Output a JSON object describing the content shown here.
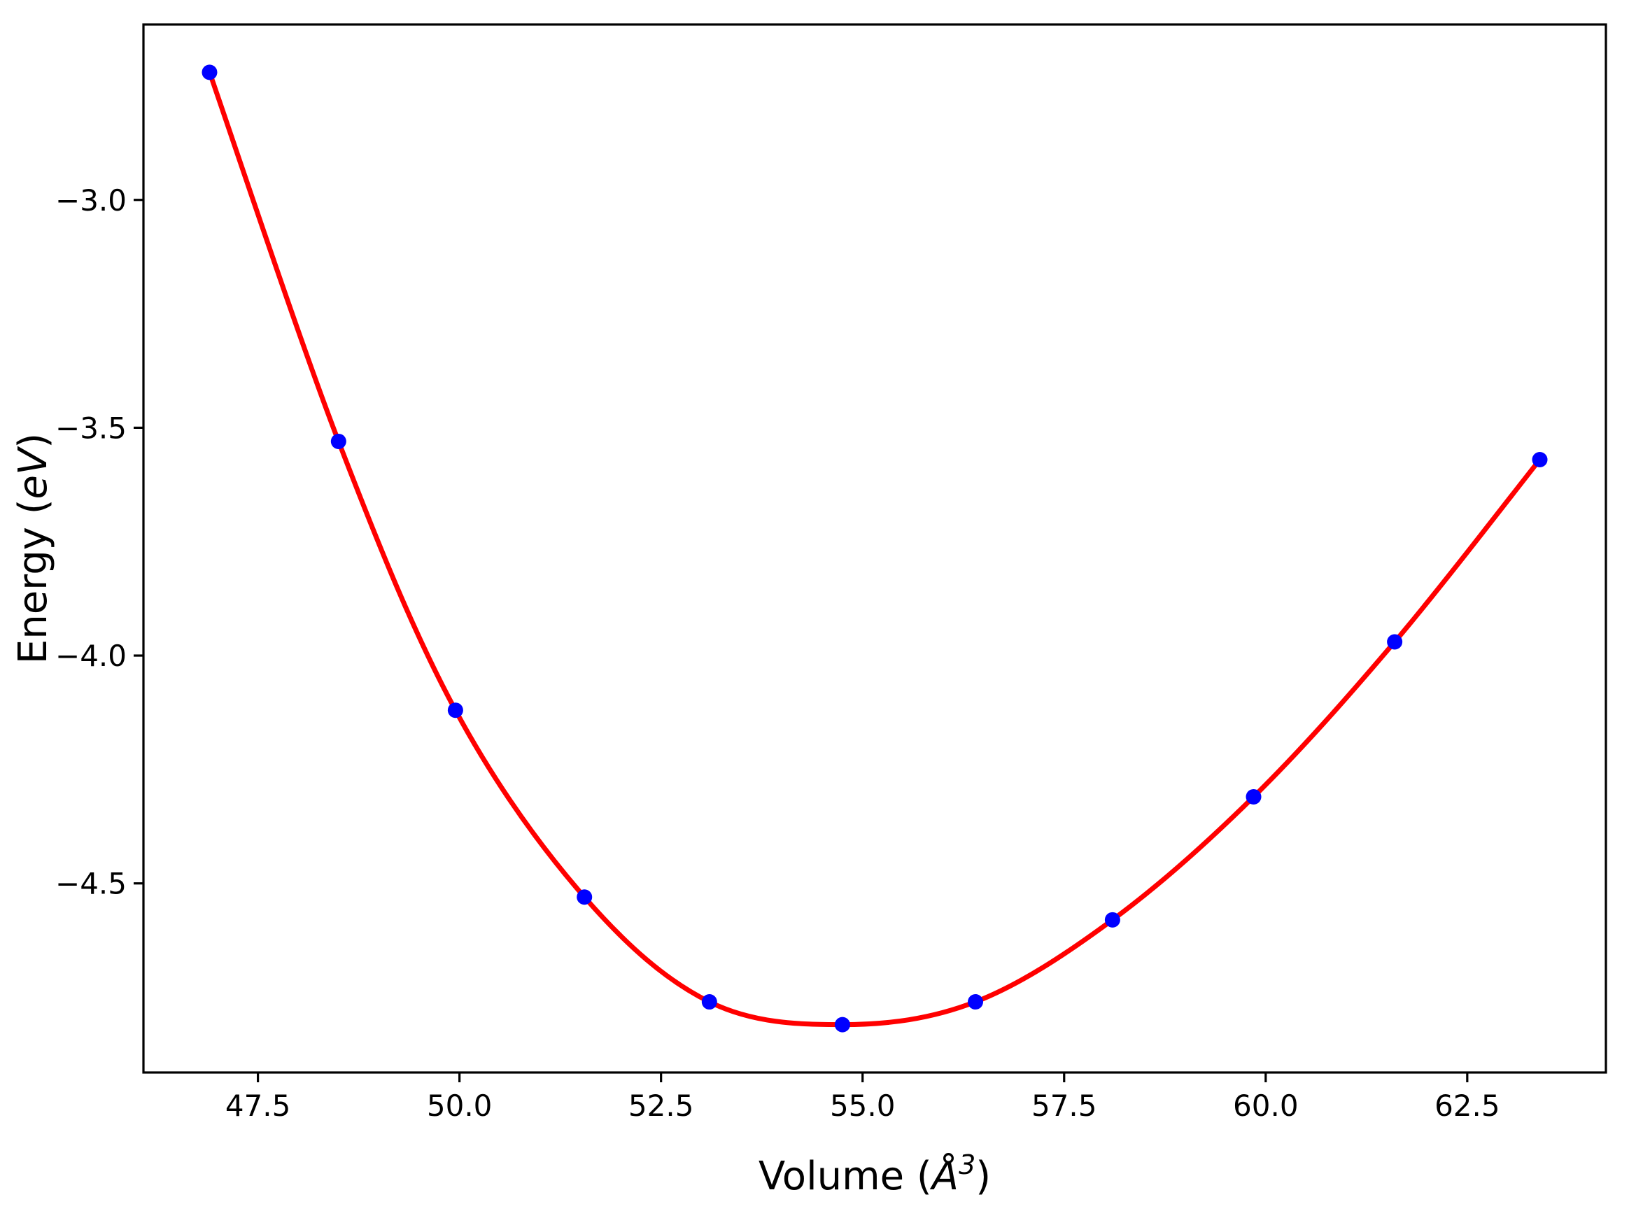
{
  "figure": {
    "background": "#ffffff",
    "border_color": "#000000"
  },
  "chart_data": {
    "type": "scatter",
    "title": "",
    "x": [
      46.9,
      48.5,
      49.95,
      51.55,
      53.1,
      54.75,
      56.4,
      58.1,
      59.85,
      61.6,
      63.4
    ],
    "y": [
      -2.72,
      -3.53,
      -4.12,
      -4.53,
      -4.76,
      -4.81,
      -4.76,
      -4.58,
      -4.31,
      -3.97,
      -3.57
    ],
    "fit_line_through_points": true,
    "line_color": "#ff0000",
    "marker_color": "#0000ff",
    "marker_shape": "circle",
    "xlabel": {
      "prefix": "Volume (",
      "math": "Å",
      "sup": "3",
      "suffix": ")"
    },
    "ylabel": {
      "prefix": "Energy (",
      "math": "eV",
      "suffix": ")"
    },
    "xticks": {
      "values": [
        47.5,
        50.0,
        52.5,
        55.0,
        57.5,
        60.0,
        62.5
      ],
      "labels": [
        "47.5",
        "50.0",
        "52.5",
        "55.0",
        "57.5",
        "60.0",
        "62.5"
      ]
    },
    "yticks": {
      "values": [
        -3.0,
        -3.5,
        -4.0,
        -4.5
      ],
      "labels": [
        "−3.0",
        "−3.5",
        "−4.0",
        "−4.5"
      ]
    },
    "xlim": [
      46.08,
      64.22
    ],
    "ylim": [
      -4.915,
      -2.615
    ],
    "grid": false,
    "legend": null
  }
}
